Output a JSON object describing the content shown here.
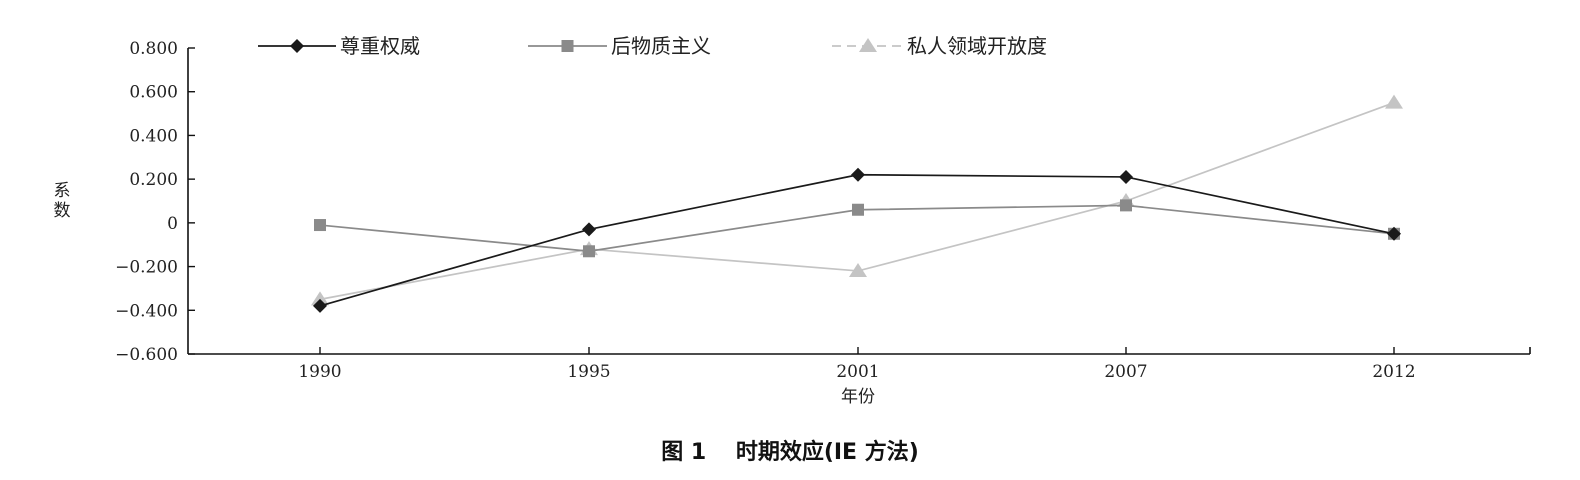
{
  "chart_data": {
    "type": "line",
    "caption": "图 1　 时期效应(IE 方法)",
    "xlabel": "年份",
    "ylabel": "系数",
    "categories": [
      "1990",
      "1995",
      "2001",
      "2007",
      "2012"
    ],
    "ylim": [
      -0.6,
      0.8
    ],
    "yticks": [
      -0.6,
      -0.4,
      -0.2,
      0,
      0.2,
      0.4,
      0.6,
      0.8
    ],
    "ytick_labels": [
      "−0.600",
      "−0.400",
      "−0.200",
      "0",
      "0.200",
      "0.400",
      "0.600",
      "0.800"
    ],
    "grid": false,
    "legend_position": "top",
    "series": [
      {
        "name": "尊重权威",
        "values": [
          -0.38,
          -0.03,
          0.22,
          0.21,
          -0.05
        ],
        "color": "#1a1a1a",
        "marker": "diamond",
        "dash": "solid"
      },
      {
        "name": "后物质主义",
        "values": [
          -0.01,
          -0.13,
          0.06,
          0.08,
          -0.05
        ],
        "color": "#8a8a8a",
        "marker": "square",
        "dash": "solid"
      },
      {
        "name": "私人领域开放度",
        "values": [
          -0.35,
          -0.12,
          -0.22,
          0.1,
          0.55
        ],
        "color": "#c4c4c4",
        "marker": "triangle",
        "dash": "dashed"
      }
    ]
  }
}
